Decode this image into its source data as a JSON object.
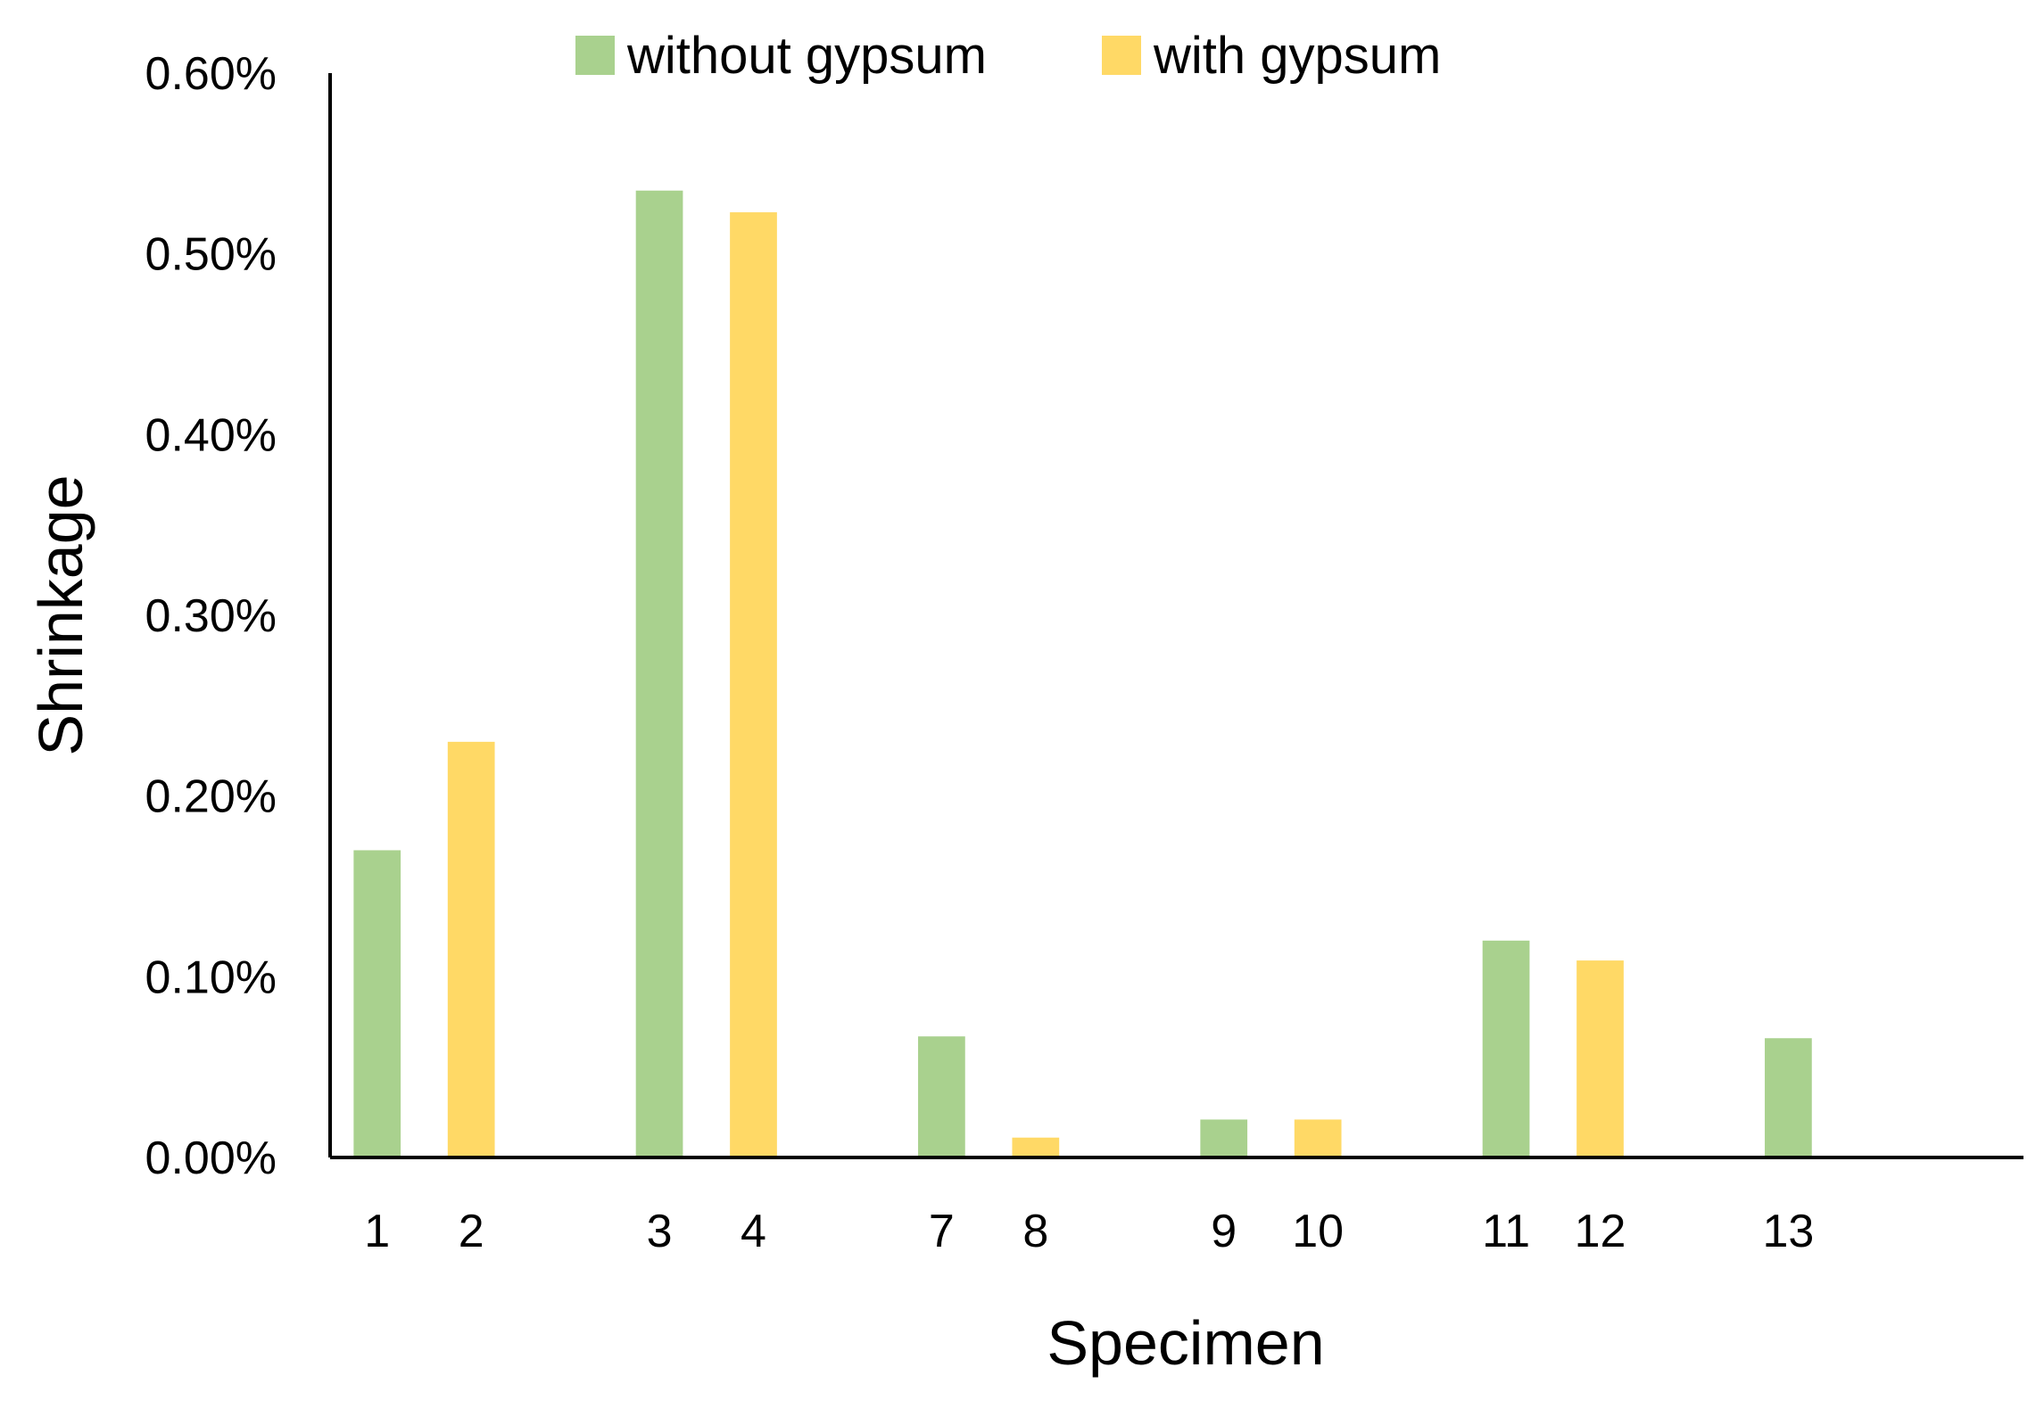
{
  "chart_data": {
    "type": "bar",
    "title": "",
    "xlabel": "Specimen",
    "ylabel": "Shrinkage",
    "ylim": [
      0,
      0.6
    ],
    "yticks": [
      "0.00%",
      "0.10%",
      "0.20%",
      "0.30%",
      "0.40%",
      "0.50%",
      "0.60%"
    ],
    "legend_position": "top",
    "grid": false,
    "series": [
      {
        "name": "without gypsum",
        "color": "#a9d18e"
      },
      {
        "name": "with gypsum",
        "color": "#ffd966"
      }
    ],
    "categories": [
      "1",
      "2",
      "3",
      "4",
      "7",
      "8",
      "9",
      "10",
      "11",
      "12",
      "13"
    ],
    "bars": [
      {
        "label": "1",
        "series": 0,
        "value": 0.17
      },
      {
        "label": "2",
        "series": 1,
        "value": 0.23
      },
      {
        "label": "3",
        "series": 0,
        "value": 0.535
      },
      {
        "label": "4",
        "series": 1,
        "value": 0.523
      },
      {
        "label": "7",
        "series": 0,
        "value": 0.067
      },
      {
        "label": "8",
        "series": 1,
        "value": 0.011
      },
      {
        "label": "9",
        "series": 0,
        "value": 0.021
      },
      {
        "label": "10",
        "series": 1,
        "value": 0.021
      },
      {
        "label": "11",
        "series": 0,
        "value": 0.12
      },
      {
        "label": "12",
        "series": 1,
        "value": 0.109
      },
      {
        "label": "13",
        "series": 0,
        "value": 0.066
      }
    ]
  }
}
